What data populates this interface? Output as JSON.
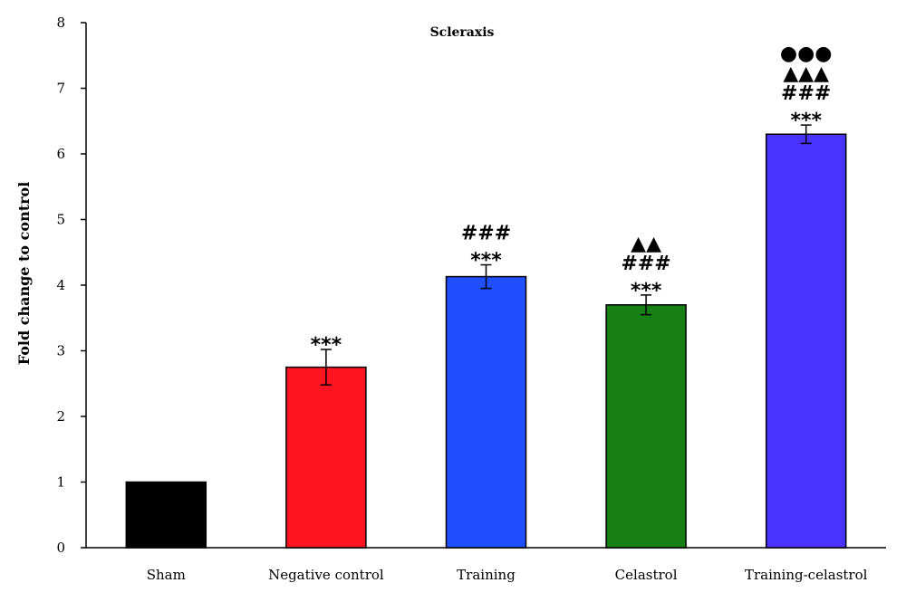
{
  "chart_data": {
    "type": "bar",
    "title": "Scleraxis",
    "xlabel": "",
    "ylabel": "Fold change to control",
    "ylim": [
      0,
      8
    ],
    "yticks": [
      "0",
      "1",
      "2",
      "3",
      "4",
      "5",
      "6",
      "7",
      "8"
    ],
    "grid": false,
    "legend": "none",
    "categories": [
      "Sham",
      "Negative control",
      "Training",
      "Celastrol",
      "Training-celastrol"
    ],
    "values": [
      1.0,
      2.75,
      4.13,
      3.7,
      6.3
    ],
    "errors": [
      0,
      0.27,
      0.18,
      0.15,
      0.14
    ],
    "colors": [
      "#000000",
      "#ff1421",
      "#1f4fff",
      "#168016",
      "#4a33ff"
    ],
    "annotations": [
      [],
      [
        "***"
      ],
      [
        "###",
        "***"
      ],
      [
        "▲▲",
        "###",
        "***"
      ],
      [
        "●●●",
        "▲▲▲",
        "###",
        "***"
      ]
    ]
  }
}
